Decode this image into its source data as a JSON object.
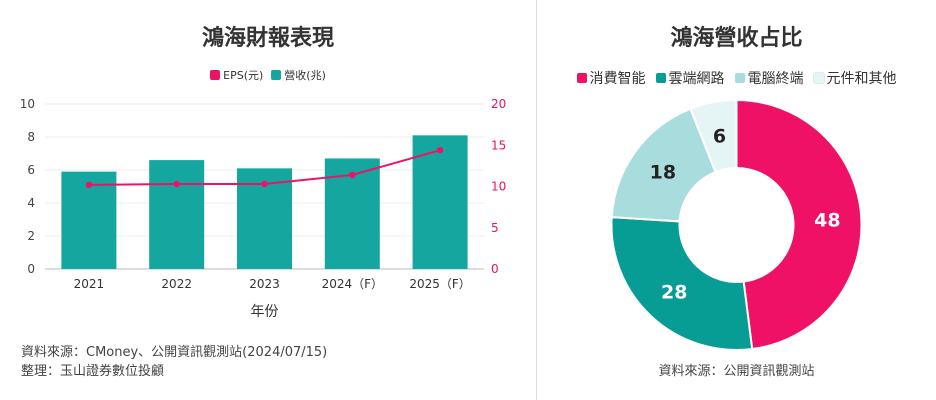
{
  "colors": {
    "primary": "#ee1166",
    "teal": "#15a6a0",
    "teal_dark": "#079d95",
    "teal_light": "#a9dcdc",
    "mint": "#e5f5f5"
  },
  "left": {
    "title": "鴻海財報表現",
    "legend": [
      {
        "label": "EPS(元)",
        "color": "#ee1166"
      },
      {
        "label": "營收(兆)",
        "color": "#15a6a0"
      }
    ],
    "source_lines": [
      "資料來源：CMoney、公開資訊觀測站(2024/07/15)",
      "整理：玉山證券數位投顧"
    ]
  },
  "right": {
    "title": "鴻海營收占比",
    "legend": [
      {
        "label": "消費智能",
        "color": "#ee1166"
      },
      {
        "label": "雲端網路",
        "color": "#079d95"
      },
      {
        "label": "電腦終端",
        "color": "#a9dcdc"
      },
      {
        "label": "元件和其他",
        "color": "#e5f5f5"
      }
    ],
    "source": "資料來源：公開資訊觀測站"
  },
  "chart_data": [
    {
      "type": "bar",
      "title": "鴻海財報表現",
      "xlabel": "年份",
      "categories": [
        "2021",
        "2022",
        "2023",
        "2024（F）",
        "2025（F）"
      ],
      "y_left": {
        "range": [
          0,
          10
        ],
        "ticks": [
          0,
          2,
          4,
          6,
          8,
          10
        ]
      },
      "y_right": {
        "range": [
          0,
          20
        ],
        "ticks": [
          0,
          5,
          10,
          15,
          20
        ]
      },
      "series": [
        {
          "name": "營收(兆)",
          "type": "bar",
          "axis": "left",
          "color": "#15a6a0",
          "values": [
            5.9,
            6.6,
            6.1,
            6.7,
            8.1
          ]
        },
        {
          "name": "EPS(元)",
          "type": "line",
          "axis": "right",
          "color": "#ee1166",
          "values": [
            10.2,
            10.3,
            10.3,
            11.4,
            14.4
          ]
        }
      ],
      "grid": true,
      "legend_position": "top"
    },
    {
      "type": "pie",
      "donut": true,
      "title": "鴻海營收占比",
      "labels": [
        "消費智能",
        "雲端網路",
        "電腦終端",
        "元件和其他"
      ],
      "values": [
        48,
        28,
        18,
        6
      ],
      "colors": [
        "#ee1166",
        "#079d95",
        "#a9dcdc",
        "#e5f5f5"
      ],
      "label_colors": [
        "#ffffff",
        "#ffffff",
        "#222222",
        "#222222"
      ],
      "legend_position": "top"
    }
  ]
}
